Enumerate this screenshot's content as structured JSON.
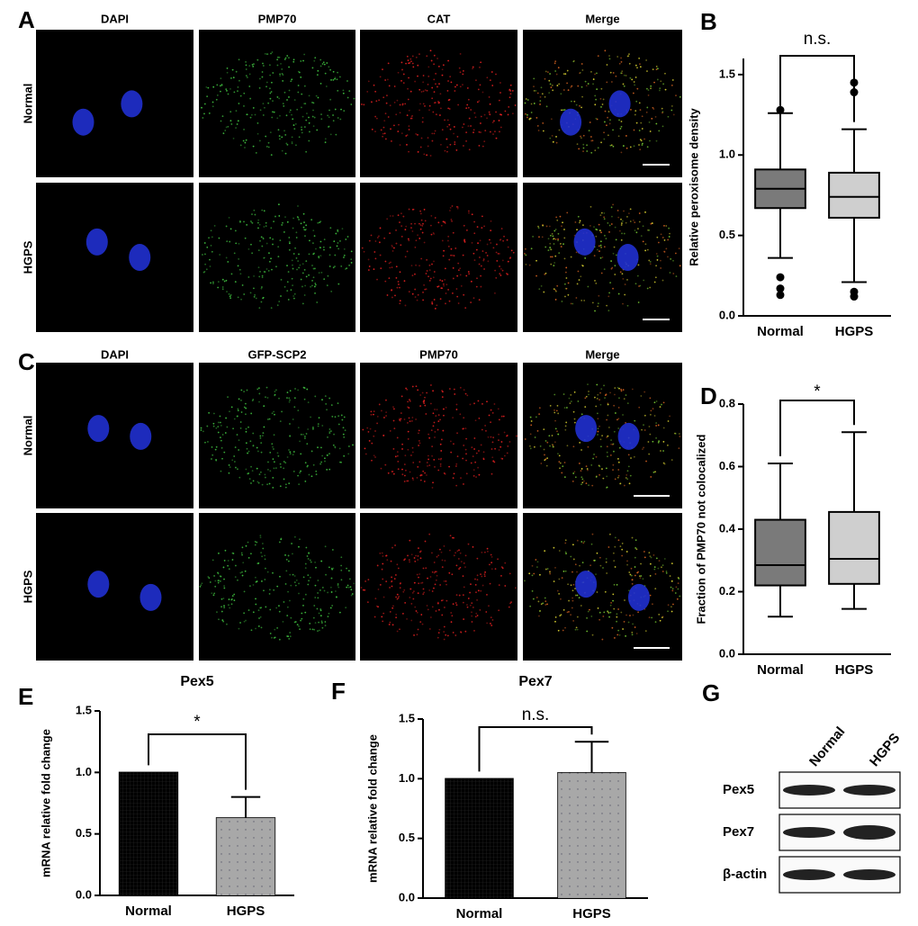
{
  "figure": {
    "panel_labels": [
      "A",
      "B",
      "C",
      "D",
      "E",
      "F",
      "G"
    ],
    "panel_a": {
      "columns": [
        "DAPI",
        "PMP70",
        "CAT",
        "Merge"
      ],
      "rows": [
        "Normal",
        "HGPS"
      ]
    },
    "panel_c": {
      "columns": [
        "DAPI",
        "GFP-SCP2",
        "PMP70",
        "Merge"
      ],
      "rows": [
        "Normal",
        "HGPS"
      ]
    },
    "panel_g": {
      "columns": [
        "Normal",
        "HGPS"
      ],
      "rows": [
        "Pex5",
        "Pex7",
        "β-actin"
      ]
    }
  },
  "chart_data": [
    {
      "type": "box",
      "y_label": "Relative peroxisome density",
      "categories": [
        "Normal",
        "HGPS"
      ],
      "annotation": "n.s.",
      "boxes": [
        {
          "low": 0.36,
          "q1": 0.67,
          "median": 0.79,
          "q3": 0.91,
          "high": 1.26,
          "outliers": [
            1.28,
            0.24,
            0.17,
            0.13
          ],
          "color": "#7a7a7a"
        },
        {
          "low": 0.21,
          "q1": 0.61,
          "median": 0.74,
          "q3": 0.89,
          "high": 1.16,
          "outliers": [
            1.45,
            1.39,
            0.15,
            0.12
          ],
          "color": "#cfcfcf"
        }
      ],
      "ylim": [
        0,
        1.6
      ],
      "yticks": [
        {
          "value": 0,
          "label": "0.0"
        },
        0.5,
        {
          "value": 1,
          "label": "1.0"
        },
        1.5
      ]
    },
    {
      "type": "box",
      "y_label": "Fraction of PMP70 not colocalized",
      "categories": [
        "Normal",
        "HGPS"
      ],
      "annotation": "*",
      "boxes": [
        {
          "low": 0.12,
          "q1": 0.22,
          "median": 0.285,
          "q3": 0.43,
          "high": 0.61,
          "outliers": [],
          "color": "#7a7a7a"
        },
        {
          "low": 0.145,
          "q1": 0.225,
          "median": 0.305,
          "q3": 0.455,
          "high": 0.71,
          "outliers": [],
          "color": "#cfcfcf"
        }
      ],
      "ylim": [
        0,
        0.8
      ],
      "yticks": [
        {
          "value": 0,
          "label": "0.0"
        },
        0.2,
        0.4,
        0.6,
        0.8
      ]
    },
    {
      "type": "bar",
      "title": "Pex5",
      "y_label": "mRNA relative fold change",
      "categories": [
        "Normal",
        "HGPS"
      ],
      "annotation": "*",
      "values": [
        1.0,
        0.63
      ],
      "errors": [
        null,
        0.17
      ],
      "colors": [
        "#000000",
        "#a8a8a8"
      ],
      "ylim": [
        0,
        1.5
      ],
      "yticks": [
        {
          "value": 0,
          "label": "0.0"
        },
        0.5,
        {
          "value": 1,
          "label": "1.0"
        },
        1.5
      ]
    },
    {
      "type": "bar",
      "title": "Pex7",
      "y_label": "mRNA relative fold change",
      "categories": [
        "Normal",
        "HGPS"
      ],
      "annotation": "n.s.",
      "values": [
        1.0,
        1.05
      ],
      "errors": [
        null,
        0.26
      ],
      "colors": [
        "#000000",
        "#a8a8a8"
      ],
      "ylim": [
        0,
        1.5
      ],
      "yticks": [
        {
          "value": 0,
          "label": "0.0"
        },
        0.5,
        {
          "value": 1,
          "label": "1.0"
        },
        1.5
      ]
    }
  ]
}
